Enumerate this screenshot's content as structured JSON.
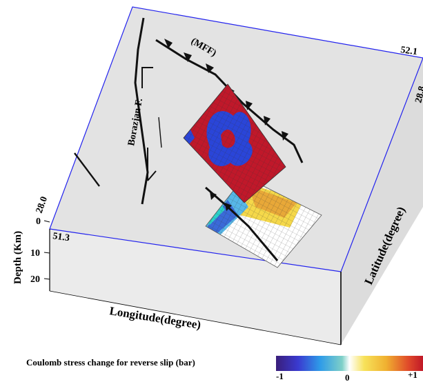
{
  "fault_labels": {
    "mff": "(MFF)",
    "borazjan": "Borazjan F."
  },
  "corner_labels": {
    "top_right_lon": "52.1",
    "right_lat": "28.8",
    "left_lat": "28.0",
    "front_lon": "51.3"
  },
  "axes": {
    "depth_title": "Depth (Km)",
    "depth_ticks": [
      "0",
      "10",
      "20"
    ],
    "longitude_title": "Longitude(degree)",
    "latitude_title": "Latitude(degree)"
  },
  "colorbar": {
    "title": "Coulomb stress change for reverse slip (bar)",
    "tick_min": "-1",
    "tick_mid": "0",
    "tick_max": "+1",
    "range": [
      -1,
      1
    ]
  },
  "colors": {
    "top_face": "#e3e3e3",
    "front_face": "#ebebeb",
    "edge_blue": "#2222ee",
    "positive": "#c0182a",
    "negative": "#2a45d8",
    "neutral": "#ffffff"
  }
}
